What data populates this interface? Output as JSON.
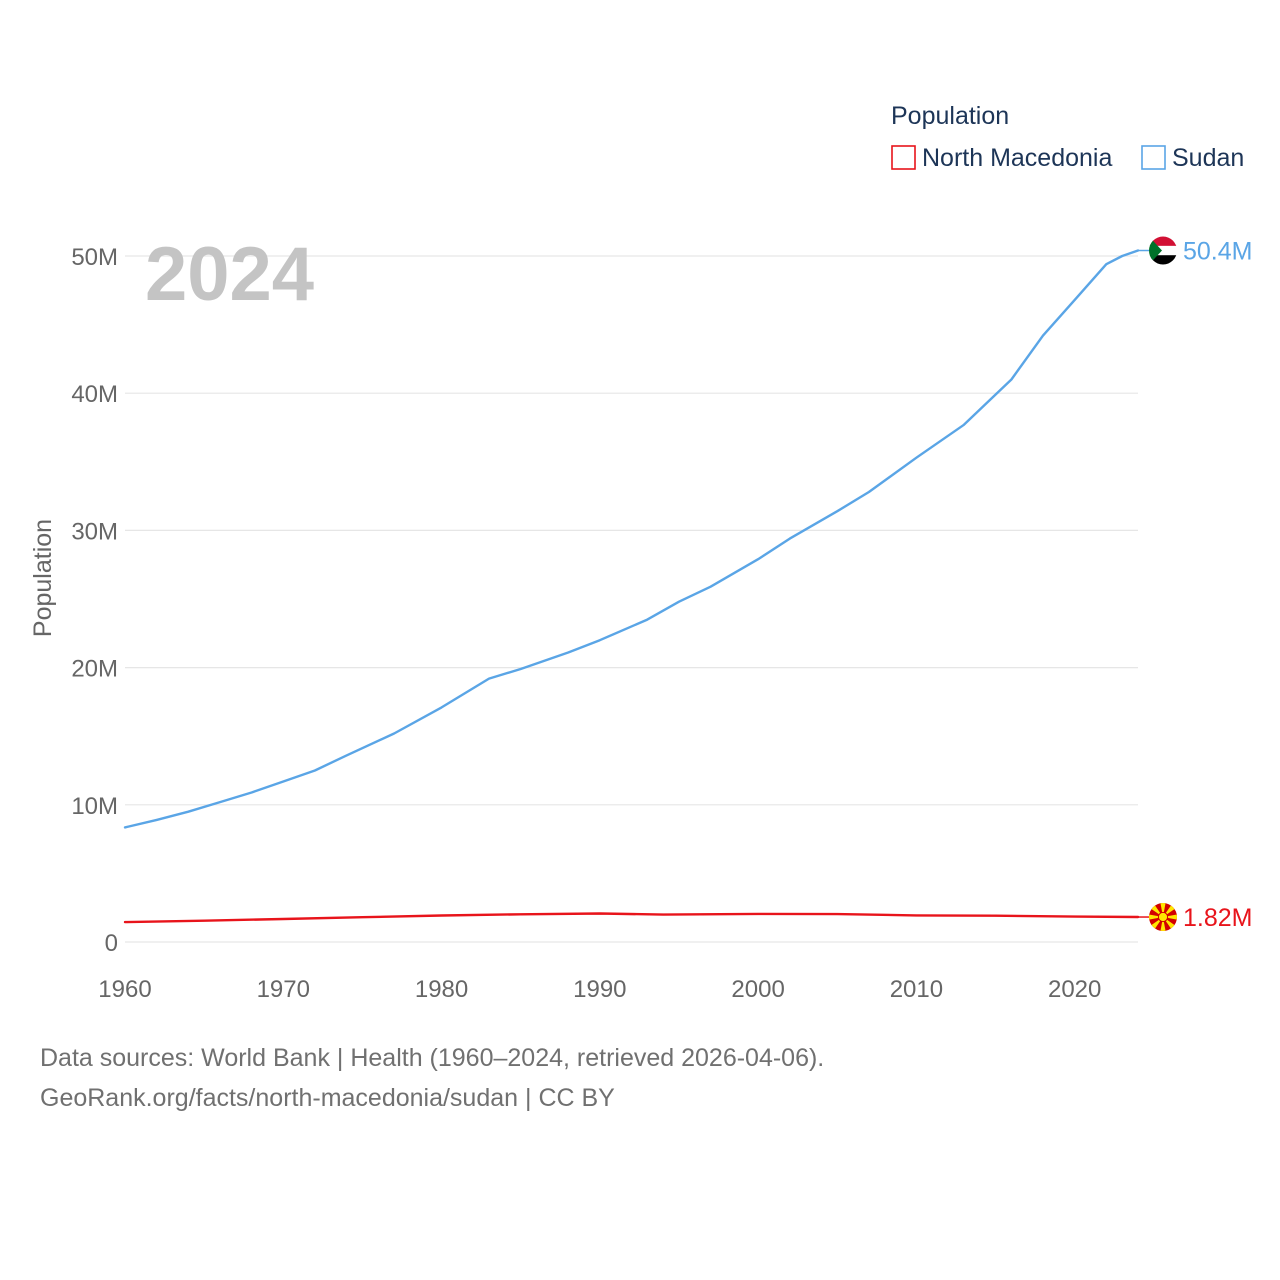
{
  "chart_data": {
    "type": "line",
    "year_label": "2024",
    "ylabel": "Population",
    "legend_title": "Population",
    "xlim": [
      1960,
      2024
    ],
    "ylim": [
      0,
      50000000
    ],
    "x_ticks": [
      {
        "value": 1960,
        "label": "1960"
      },
      {
        "value": 1970,
        "label": "1970"
      },
      {
        "value": 1980,
        "label": "1980"
      },
      {
        "value": 1990,
        "label": "1990"
      },
      {
        "value": 2000,
        "label": "2000"
      },
      {
        "value": 2010,
        "label": "2010"
      },
      {
        "value": 2020,
        "label": "2020"
      }
    ],
    "y_ticks": [
      {
        "value": 0,
        "label": "0"
      },
      {
        "value": 10000000,
        "label": "10M"
      },
      {
        "value": 20000000,
        "label": "20M"
      },
      {
        "value": 30000000,
        "label": "30M"
      },
      {
        "value": 40000000,
        "label": "40M"
      },
      {
        "value": 50000000,
        "label": "50M"
      }
    ],
    "series": [
      {
        "name": "North Macedonia",
        "color": "#e8141b",
        "end_label": "1.82M",
        "flag_icon": "north-macedonia-flag-icon",
        "x": [
          1960,
          1965,
          1970,
          1975,
          1980,
          1985,
          1990,
          1994,
          2000,
          2005,
          2010,
          2015,
          2020,
          2024
        ],
        "values": [
          1450000,
          1550000,
          1680000,
          1810000,
          1930000,
          2020000,
          2080000,
          2000000,
          2050000,
          2030000,
          1940000,
          1920000,
          1850000,
          1820000
        ]
      },
      {
        "name": "Sudan",
        "color": "#5aa5e6",
        "end_label": "50.4M",
        "flag_icon": "sudan-flag-icon",
        "x": [
          1960,
          1962,
          1964,
          1966,
          1968,
          1970,
          1972,
          1974,
          1977,
          1980,
          1983,
          1985,
          1988,
          1990,
          1993,
          1995,
          1997,
          2000,
          2002,
          2005,
          2007,
          2010,
          2013,
          2015,
          2016,
          2018,
          2020,
          2022,
          2023,
          2024
        ],
        "values": [
          8350000,
          8900000,
          9500000,
          10200000,
          10900000,
          11700000,
          12500000,
          13600000,
          15200000,
          17100000,
          19200000,
          19900000,
          21100000,
          22000000,
          23500000,
          24800000,
          25900000,
          27900000,
          29400000,
          31400000,
          32800000,
          35300000,
          37700000,
          39900000,
          41000000,
          44200000,
          46800000,
          49400000,
          50000000,
          50400000
        ]
      }
    ]
  },
  "footer": {
    "line1": "Data sources: World Bank | Health (1960–2024, retrieved 2026-04-06).",
    "line2": "GeoRank.org/facts/north-macedonia/sudan | CC BY"
  }
}
